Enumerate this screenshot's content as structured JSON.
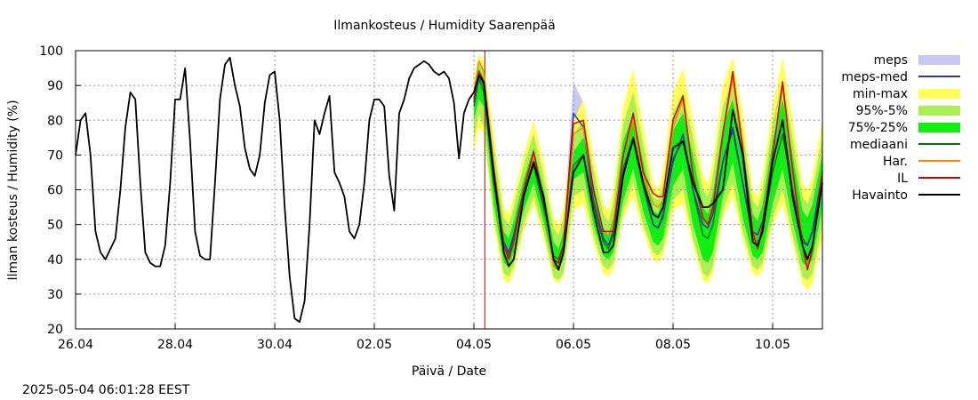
{
  "chart_data": {
    "type": "line",
    "title": "Ilmankosteus / Humidity  Saarenpää",
    "xlabel": "Päivä / Date",
    "ylabel": "Ilman kosteus / Humidity (%)",
    "timestamp": "2025-05-04 06:01:28 EEST",
    "x_unit": "days since 26.04 00:00",
    "xlim": [
      0,
      15
    ],
    "ylim": [
      20,
      100
    ],
    "grid": true,
    "legend_position": "right",
    "x_ticks": [
      {
        "x": 0,
        "label": "26.04"
      },
      {
        "x": 2,
        "label": "28.04"
      },
      {
        "x": 4,
        "label": "30.04"
      },
      {
        "x": 6,
        "label": "02.05"
      },
      {
        "x": 8,
        "label": "04.05"
      },
      {
        "x": 10,
        "label": "06.05"
      },
      {
        "x": 12,
        "label": "08.05"
      },
      {
        "x": 14,
        "label": "10.05"
      }
    ],
    "y_ticks": [
      20,
      30,
      40,
      50,
      60,
      70,
      80,
      90,
      100
    ],
    "now_line_x": 8.22,
    "now_line_color": "#dd0000",
    "legend": [
      {
        "label": "meps",
        "kind": "band",
        "color": "#c8c8f0"
      },
      {
        "label": "meps-med",
        "kind": "line",
        "color": "#3333bb"
      },
      {
        "label": "min-max",
        "kind": "band",
        "color": "#ffff55"
      },
      {
        "label": "95%-5%",
        "kind": "band",
        "color": "#aaf055"
      },
      {
        "label": "75%-25%",
        "kind": "band",
        "color": "#11ee11"
      },
      {
        "label": "mediaani",
        "kind": "line",
        "color": "#007700"
      },
      {
        "label": "Har.",
        "kind": "line",
        "color": "#ff8800"
      },
      {
        "label": "IL",
        "kind": "line",
        "color": "#dd0000"
      },
      {
        "label": "Havainto",
        "kind": "line",
        "color": "#000000"
      }
    ],
    "forecast_x": [
      8.0,
      8.1,
      8.2,
      8.4,
      8.6,
      8.7,
      8.8,
      9.0,
      9.2,
      9.4,
      9.6,
      9.7,
      9.8,
      10.0,
      10.2,
      10.4,
      10.6,
      10.7,
      10.8,
      11.0,
      11.2,
      11.4,
      11.6,
      11.7,
      11.8,
      12.0,
      12.2,
      12.4,
      12.6,
      12.7,
      12.8,
      13.0,
      13.2,
      13.4,
      13.6,
      13.7,
      13.8,
      14.0,
      14.2,
      14.4,
      14.6,
      14.7,
      14.8,
      15.0
    ],
    "series": [
      {
        "name": "meps",
        "kind": "band",
        "color": "#c8c8f0",
        "low": [
          80,
          89,
          82,
          56,
          40,
          38,
          44,
          55,
          64,
          54,
          35,
          33,
          38,
          72,
          72,
          52,
          42,
          40,
          43,
          58,
          72,
          58,
          46,
          45,
          50,
          65,
          72,
          56,
          46,
          45,
          50,
          65,
          75,
          58,
          44,
          43,
          48,
          64,
          76,
          55,
          41,
          40,
          44,
          60
        ],
        "high": [
          91,
          98,
          96,
          70,
          50,
          48,
          55,
          64,
          72,
          60,
          44,
          42,
          50,
          91,
          85,
          58,
          48,
          46,
          50,
          66,
          80,
          65,
          54,
          52,
          58,
          72,
          82,
          64,
          54,
          52,
          56,
          72,
          84,
          66,
          52,
          50,
          55,
          72,
          88,
          65,
          50,
          48,
          52,
          70
        ]
      },
      {
        "name": "min-max",
        "kind": "band",
        "color": "#ffff55",
        "low": [
          70,
          78,
          76,
          50,
          34,
          33,
          36,
          48,
          56,
          46,
          34,
          33,
          35,
          54,
          56,
          45,
          36,
          35,
          37,
          52,
          58,
          48,
          40,
          39,
          41,
          54,
          56,
          44,
          34,
          33,
          36,
          52,
          58,
          46,
          36,
          35,
          37,
          50,
          56,
          45,
          33,
          31,
          33,
          46
        ],
        "high": [
          92,
          99,
          97,
          76,
          55,
          53,
          58,
          70,
          80,
          68,
          52,
          50,
          55,
          80,
          86,
          70,
          56,
          54,
          60,
          84,
          95,
          78,
          62,
          60,
          66,
          88,
          95,
          80,
          64,
          62,
          68,
          90,
          98,
          82,
          60,
          58,
          64,
          84,
          98,
          80,
          62,
          60,
          64,
          80
        ]
      },
      {
        "name": "95%-5%",
        "kind": "band",
        "color": "#aaf055",
        "low": [
          74,
          82,
          78,
          52,
          36,
          35,
          38,
          50,
          58,
          48,
          35,
          34,
          36,
          58,
          60,
          47,
          38,
          37,
          39,
          54,
          62,
          50,
          42,
          41,
          43,
          57,
          60,
          46,
          36,
          35,
          38,
          54,
          62,
          48,
          38,
          37,
          39,
          52,
          60,
          47,
          35,
          34,
          36,
          50
        ],
        "high": [
          90,
          97,
          95,
          72,
          52,
          50,
          55,
          67,
          76,
          64,
          49,
          47,
          52,
          76,
          80,
          66,
          53,
          51,
          56,
          79,
          88,
          73,
          58,
          57,
          62,
          82,
          88,
          75,
          60,
          58,
          64,
          84,
          92,
          77,
          57,
          55,
          60,
          79,
          92,
          75,
          58,
          56,
          60,
          75
        ]
      },
      {
        "name": "75%-25%",
        "kind": "band",
        "color": "#11ee11",
        "low": [
          80,
          86,
          84,
          56,
          39,
          38,
          42,
          54,
          62,
          51,
          38,
          37,
          40,
          63,
          65,
          50,
          41,
          40,
          42,
          57,
          66,
          54,
          45,
          44,
          46,
          61,
          66,
          50,
          40,
          39,
          42,
          58,
          68,
          52,
          41,
          40,
          42,
          56,
          66,
          51,
          39,
          38,
          40,
          55
        ],
        "high": [
          88,
          95,
          92,
          68,
          48,
          46,
          51,
          63,
          72,
          60,
          45,
          43,
          48,
          71,
          75,
          62,
          49,
          47,
          52,
          74,
          82,
          68,
          54,
          53,
          58,
          77,
          82,
          70,
          55,
          53,
          59,
          78,
          86,
          72,
          53,
          51,
          56,
          74,
          86,
          70,
          54,
          52,
          56,
          70
        ]
      },
      {
        "name": "mediaani",
        "kind": "line",
        "color": "#007700",
        "values": [
          84,
          92,
          88,
          62,
          44,
          41,
          46,
          59,
          67,
          55,
          41,
          40,
          44,
          67,
          70,
          56,
          45,
          43,
          47,
          65,
          74,
          61,
          50,
          49,
          52,
          69,
          74,
          60,
          47,
          46,
          50,
          68,
          77,
          62,
          46,
          45,
          48,
          65,
          76,
          60,
          46,
          44,
          48,
          62
        ]
      },
      {
        "name": "meps-med",
        "kind": "line",
        "color": "#3333bb",
        "values": [
          85,
          93,
          90,
          63,
          45,
          42,
          47,
          60,
          68,
          56,
          40,
          39,
          44,
          82,
          78,
          57,
          46,
          44,
          48,
          66,
          75,
          62,
          50,
          49,
          53,
          68,
          76,
          60,
          50,
          49,
          53,
          68,
          78,
          62,
          48,
          47,
          51,
          68,
          80,
          60,
          45,
          44,
          48,
          65
        ]
      },
      {
        "name": "Har.",
        "kind": "line",
        "color": "#ff8800",
        "values": [
          88,
          97,
          94,
          66,
          44,
          40,
          45,
          60,
          70,
          57,
          38,
          37,
          42,
          76,
          78,
          60,
          48,
          47,
          50,
          70,
          80,
          64,
          56,
          55,
          57,
          78,
          86,
          64,
          52,
          50,
          56,
          76,
          92,
          70,
          48,
          44,
          50,
          70,
          90,
          65,
          44,
          38,
          44,
          62
        ]
      },
      {
        "name": "IL",
        "kind": "line",
        "color": "#dd0000",
        "values": [
          86,
          94,
          91,
          66,
          44,
          40,
          45,
          60,
          71,
          57,
          40,
          39,
          44,
          79,
          80,
          60,
          48,
          48,
          48,
          70,
          82,
          65,
          59,
          58,
          58,
          80,
          87,
          64,
          52,
          50,
          55,
          76,
          94,
          72,
          48,
          43,
          50,
          70,
          91,
          66,
          44,
          37,
          43,
          65
        ]
      },
      {
        "name": "Havainto",
        "kind": "line",
        "color": "#000000",
        "x": [
          0,
          0.1,
          0.2,
          0.3,
          0.4,
          0.5,
          0.6,
          0.7,
          0.8,
          0.9,
          1.0,
          1.1,
          1.2,
          1.3,
          1.4,
          1.5,
          1.6,
          1.7,
          1.8,
          1.9,
          2.0,
          2.1,
          2.2,
          2.3,
          2.4,
          2.5,
          2.6,
          2.7,
          2.8,
          2.9,
          3.0,
          3.1,
          3.2,
          3.3,
          3.4,
          3.5,
          3.6,
          3.7,
          3.8,
          3.9,
          4.0,
          4.1,
          4.2,
          4.3,
          4.4,
          4.5,
          4.6,
          4.7,
          4.8,
          4.9,
          5.0,
          5.1,
          5.2,
          5.3,
          5.4,
          5.5,
          5.6,
          5.7,
          5.8,
          5.9,
          6.0,
          6.1,
          6.2,
          6.3,
          6.4,
          6.5,
          6.6,
          6.7,
          6.8,
          6.9,
          7.0,
          7.1,
          7.2,
          7.3,
          7.4,
          7.5,
          7.6,
          7.7,
          7.8,
          7.9,
          8.0,
          8.1,
          8.2,
          8.4,
          8.6,
          8.7,
          8.8,
          9.0,
          9.2,
          9.4,
          9.6,
          9.7,
          9.8,
          10.0,
          10.2,
          10.4,
          10.6,
          10.7,
          10.8,
          11.0,
          11.2,
          11.4,
          11.6,
          11.7,
          11.8,
          12.0,
          12.2,
          12.4,
          12.6,
          12.7,
          12.8,
          13.0,
          13.2,
          13.4,
          13.6,
          13.7,
          13.8,
          14.0,
          14.2,
          14.4,
          14.6,
          14.7,
          14.8,
          15.0
        ],
        "values": [
          70,
          80,
          82,
          70,
          48,
          42,
          40,
          43,
          46,
          60,
          78,
          88,
          86,
          62,
          42,
          39,
          38,
          38,
          44,
          62,
          86,
          86,
          95,
          74,
          48,
          41,
          40,
          40,
          62,
          86,
          96,
          98,
          90,
          84,
          72,
          66,
          64,
          70,
          85,
          93,
          94,
          80,
          55,
          35,
          23,
          22,
          28,
          50,
          80,
          76,
          82,
          87,
          65,
          62,
          58,
          48,
          46,
          50,
          62,
          80,
          86,
          86,
          84,
          64,
          54,
          82,
          86,
          92,
          95,
          96,
          97,
          96,
          94,
          93,
          94,
          92,
          85,
          69,
          82,
          86,
          88,
          93,
          91,
          64,
          42,
          38,
          40,
          58,
          68,
          58,
          40,
          37,
          42,
          65,
          70,
          54,
          42,
          42,
          44,
          64,
          75,
          62,
          53,
          52,
          55,
          72,
          74,
          62,
          55,
          55,
          56,
          60,
          83,
          70,
          45,
          44,
          48,
          68,
          80,
          58,
          44,
          40,
          44,
          62
        ]
      }
    ]
  }
}
